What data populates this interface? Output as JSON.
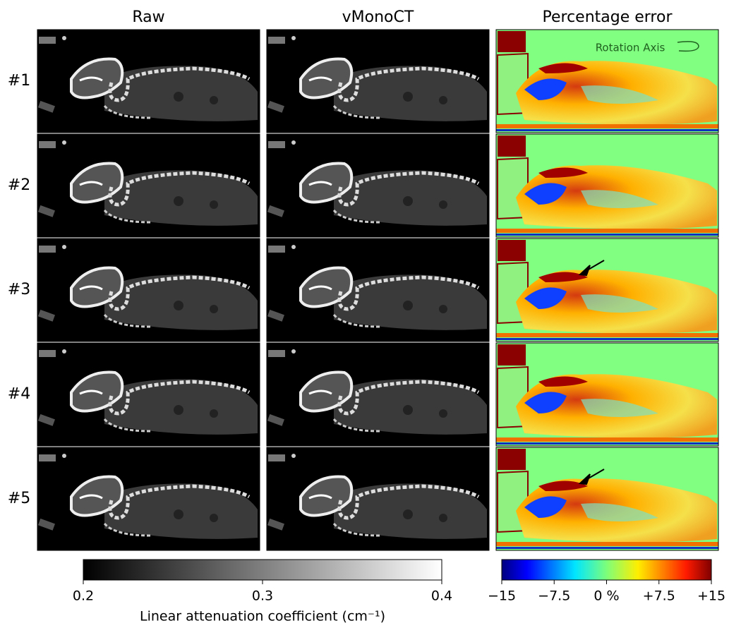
{
  "columns": [
    "Raw",
    "vMonoCT",
    "Percentage error"
  ],
  "rows": [
    "#1",
    "#2",
    "#3",
    "#4",
    "#5"
  ],
  "annotation": "Rotation Axis",
  "colorbars": [
    {
      "label": "Linear attenuation coefficient (cm⁻¹)",
      "lim": [
        0.2,
        0.4
      ],
      "ticks": [
        0.2,
        0.3,
        0.4
      ]
    },
    {
      "lim": [
        -15,
        15
      ],
      "ticks": [
        {
          "value": -15,
          "label": "−15"
        },
        {
          "value": -7.5,
          "label": "−7.5"
        },
        {
          "value": 0,
          "label": "0 %"
        },
        {
          "value": 7.5,
          "label": "+7.5"
        },
        {
          "value": 15,
          "label": "+15"
        }
      ]
    }
  ]
}
